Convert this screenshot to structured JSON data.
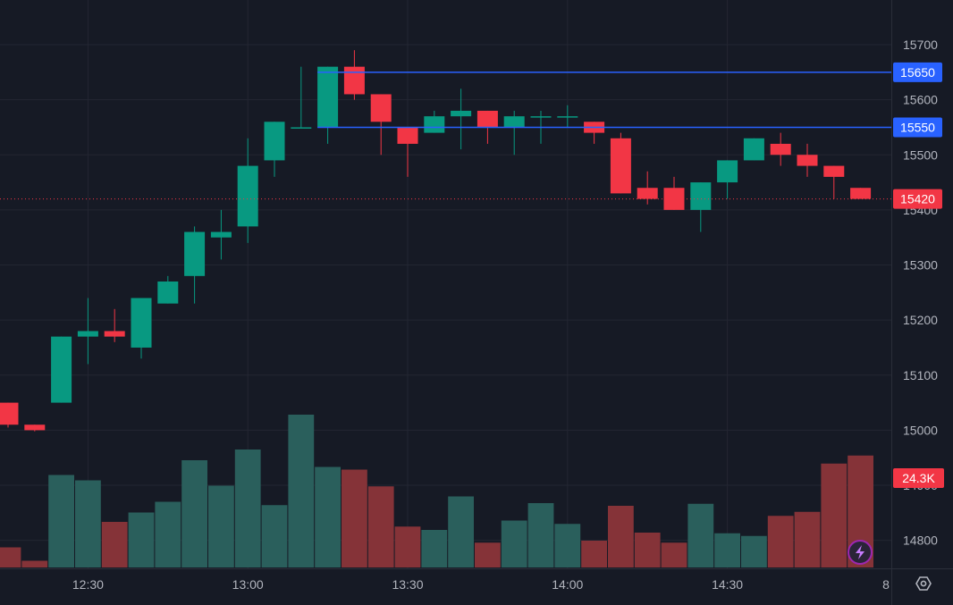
{
  "colors": {
    "background": "#161a25",
    "grid": "#232632",
    "up": "#089981",
    "down": "#f23645",
    "up_volume": "#2a5f5c",
    "down_volume": "#853338",
    "level_line": "#2962ff",
    "axis_text": "#b2b5be",
    "current_price": "#f23645"
  },
  "chart_data": {
    "type": "candlestick",
    "time_labels": [
      "12:30",
      "13:00",
      "13:30",
      "14:00",
      "14:30"
    ],
    "price_ticks": [
      14800,
      14900,
      15000,
      15100,
      15200,
      15300,
      15400,
      15500,
      15600,
      15700
    ],
    "ylim": [
      14760,
      15740
    ],
    "candles": [
      {
        "t": "12:15",
        "o": 15050,
        "h": 15050,
        "l": 15005,
        "c": 15010
      },
      {
        "t": "12:20",
        "o": 15010,
        "h": 15010,
        "l": 14998,
        "c": 15000
      },
      {
        "t": "12:25",
        "o": 15050,
        "h": 15170,
        "l": 15050,
        "c": 15170
      },
      {
        "t": "12:30",
        "o": 15170,
        "h": 15240,
        "l": 15120,
        "c": 15180
      },
      {
        "t": "12:35",
        "o": 15180,
        "h": 15220,
        "l": 15160,
        "c": 15170
      },
      {
        "t": "12:40",
        "o": 15150,
        "h": 15240,
        "l": 15130,
        "c": 15240
      },
      {
        "t": "12:45",
        "o": 15230,
        "h": 15280,
        "l": 15230,
        "c": 15270
      },
      {
        "t": "12:50",
        "o": 15280,
        "h": 15370,
        "l": 15230,
        "c": 15360
      },
      {
        "t": "12:55",
        "o": 15350,
        "h": 15400,
        "l": 15310,
        "c": 15360
      },
      {
        "t": "13:00",
        "o": 15370,
        "h": 15530,
        "l": 15340,
        "c": 15480
      },
      {
        "t": "13:05",
        "o": 15490,
        "h": 15560,
        "l": 15460,
        "c": 15560
      },
      {
        "t": "13:10",
        "o": 15550,
        "h": 15660,
        "l": 15550,
        "c": 15550
      },
      {
        "t": "13:15",
        "o": 15550,
        "h": 15660,
        "l": 15520,
        "c": 15660
      },
      {
        "t": "13:20",
        "o": 15660,
        "h": 15690,
        "l": 15600,
        "c": 15610
      },
      {
        "t": "13:25",
        "o": 15610,
        "h": 15610,
        "l": 15500,
        "c": 15560
      },
      {
        "t": "13:30",
        "o": 15550,
        "h": 15550,
        "l": 15460,
        "c": 15520
      },
      {
        "t": "13:35",
        "o": 15540,
        "h": 15580,
        "l": 15540,
        "c": 15570
      },
      {
        "t": "13:40",
        "o": 15570,
        "h": 15620,
        "l": 15510,
        "c": 15580
      },
      {
        "t": "13:45",
        "o": 15580,
        "h": 15580,
        "l": 15520,
        "c": 15550
      },
      {
        "t": "13:50",
        "o": 15550,
        "h": 15580,
        "l": 15500,
        "c": 15570
      },
      {
        "t": "13:55",
        "o": 15570,
        "h": 15580,
        "l": 15520,
        "c": 15570
      },
      {
        "t": "14:00",
        "o": 15570,
        "h": 15590,
        "l": 15550,
        "c": 15570
      },
      {
        "t": "14:05",
        "o": 15560,
        "h": 15560,
        "l": 15520,
        "c": 15540
      },
      {
        "t": "14:10",
        "o": 15530,
        "h": 15540,
        "l": 15430,
        "c": 15430
      },
      {
        "t": "14:15",
        "o": 15440,
        "h": 15470,
        "l": 15410,
        "c": 15420
      },
      {
        "t": "14:20",
        "o": 15440,
        "h": 15460,
        "l": 15400,
        "c": 15400
      },
      {
        "t": "14:25",
        "o": 15400,
        "h": 15450,
        "l": 15360,
        "c": 15450
      },
      {
        "t": "14:30",
        "o": 15450,
        "h": 15490,
        "l": 15420,
        "c": 15490
      },
      {
        "t": "14:35",
        "o": 15490,
        "h": 15530,
        "l": 15490,
        "c": 15530
      },
      {
        "t": "14:40",
        "o": 15520,
        "h": 15540,
        "l": 15480,
        "c": 15500
      },
      {
        "t": "14:45",
        "o": 15500,
        "h": 15520,
        "l": 15460,
        "c": 15480
      },
      {
        "t": "14:50",
        "o": 15480,
        "h": 15480,
        "l": 15420,
        "c": 15460
      },
      {
        "t": "14:55",
        "o": 15440,
        "h": 15440,
        "l": 15420,
        "c": 15420
      }
    ],
    "volume": [
      30,
      10,
      138,
      130,
      68,
      82,
      98,
      160,
      122,
      176,
      93,
      228,
      150,
      146,
      121,
      61,
      56,
      106,
      37,
      70,
      96,
      65,
      40,
      92,
      52,
      37,
      95,
      51,
      47,
      77,
      83,
      155,
      167
    ],
    "volume_max": 250,
    "horizontal_levels": [
      {
        "label": "15650",
        "price": 15650
      },
      {
        "label": "15550",
        "price": 15550
      }
    ],
    "current_price": {
      "label": "15420",
      "price": 15420
    },
    "volume_label": "24.3K"
  },
  "axis": {
    "extra_label": "8"
  },
  "icons": {
    "settings": "settings-icon",
    "lightning": "lightning-icon"
  }
}
